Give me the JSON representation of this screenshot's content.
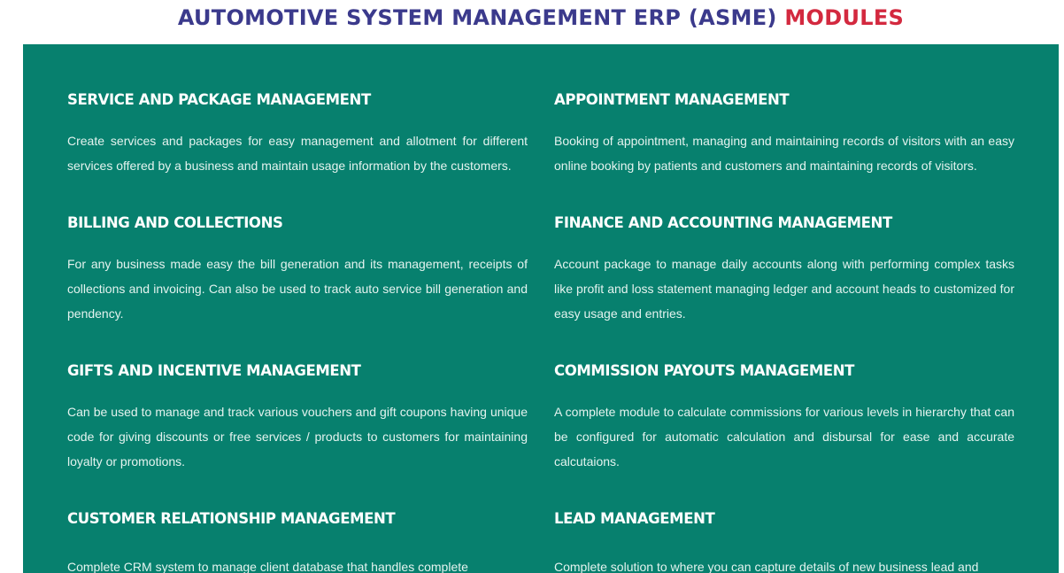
{
  "header": {
    "title_main": "AUTOMOTIVE SYSTEM MANAGEMENT ERP (ASME)",
    "title_accent": "MODULES"
  },
  "colors": {
    "panel_background": "#07806e",
    "title_main": "#3b3a8c",
    "title_accent": "#d3293f",
    "module_text": "#ffffff"
  },
  "modules": [
    {
      "title": "SERVICE AND PACKAGE MANAGEMENT",
      "description": "Create services and packages for easy management and allotment for different services offered by a business and maintain usage information by the customers."
    },
    {
      "title": "APPOINTMENT MANAGEMENT",
      "description": "Booking of appointment, managing and maintaining records of visitors with an easy online booking by patients and customers and maintaining records of visitors."
    },
    {
      "title": "BILLING AND COLLECTIONS",
      "description": "For any business made easy the bill generation and its management, receipts of collections and invoicing. Can also be used to track auto service bill generation and pendency."
    },
    {
      "title": "FINANCE AND ACCOUNTING MANAGEMENT",
      "description": "Account package to manage daily accounts along with performing complex tasks like profit and loss statement managing ledger and account heads to customized for easy usage and entries."
    },
    {
      "title": "GIFTS AND INCENTIVE MANAGEMENT",
      "description": "Can be used to manage and track various vouchers and gift coupons having unique code for giving discounts or free services / products to customers for maintaining loyalty or promotions."
    },
    {
      "title": "COMMISSION PAYOUTS MANAGEMENT",
      "description": "A complete module to calculate commissions for various levels in hierarchy that can be configured for automatic calculation and disbursal for ease and accurate calcutaions."
    },
    {
      "title": "CUSTOMER RELATIONSHIP MANAGEMENT",
      "description": "Complete CRM system to manage client database that handles complete"
    },
    {
      "title": "LEAD MANAGEMENT",
      "description": "Complete solution to where you can capture details of new business lead and"
    }
  ]
}
